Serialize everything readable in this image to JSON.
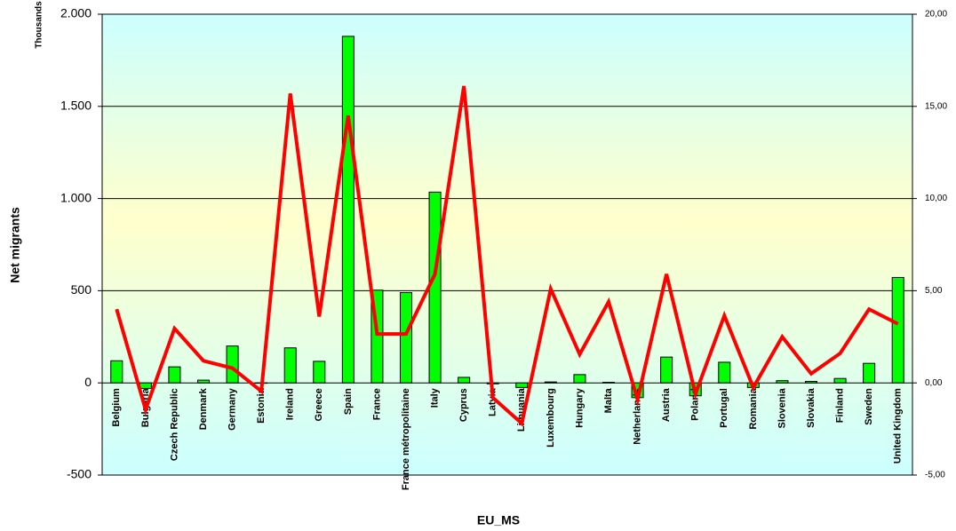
{
  "chart_data": {
    "type": "bar",
    "y_unit_label": "Thousands",
    "ylabel": "Net migrants",
    "xlabel": "EU_MS",
    "categories": [
      "Belgium",
      "Bulgaria",
      "Czech Republic",
      "Denmark",
      "Germany",
      "Estonia",
      "Ireland",
      "Greece",
      "Spain",
      "France",
      "France métropolitaine",
      "Italy",
      "Cyprus",
      "Latvia",
      "Lithuania",
      "Luxembourg",
      "Hungary",
      "Malta",
      "Netherlands",
      "Austria",
      "Poland",
      "Portugal",
      "Romania",
      "Slovenia",
      "Slovakia",
      "Finland",
      "Sweden",
      "United Kingdom"
    ],
    "series": [
      {
        "type": "bar",
        "color": "#00ff00",
        "values": [
          120,
          -30,
          87,
          15,
          200,
          -2,
          190,
          117,
          1880,
          503,
          490,
          1035,
          30,
          -5,
          -25,
          5,
          45,
          3,
          -80,
          140,
          -70,
          112,
          -25,
          12,
          8,
          24,
          106,
          572
        ]
      },
      {
        "type": "line",
        "axis": "y2",
        "color": "#ff0000",
        "values": [
          4.0,
          -1.45,
          2.95,
          1.2,
          0.8,
          -0.45,
          15.7,
          3.6,
          14.5,
          2.65,
          2.65,
          5.9,
          16.1,
          -0.8,
          -2.2,
          5.1,
          1.55,
          4.4,
          -0.9,
          5.9,
          -0.6,
          3.65,
          -0.25,
          2.5,
          0.5,
          1.6,
          4.0,
          3.2
        ]
      }
    ],
    "ylim": [
      -500,
      2000
    ],
    "yticks": [
      -500,
      0,
      500,
      {
        "value": 1000,
        "label": "1.000"
      },
      {
        "value": 1500,
        "label": "1.500"
      },
      {
        "value": 2000,
        "label": "2.000"
      }
    ],
    "y2lim": [
      -5,
      20
    ],
    "y2ticks": [
      {
        "value": -5,
        "label": "-5,00"
      },
      {
        "value": 0,
        "label": "0,00"
      },
      {
        "value": 5,
        "label": "5,00"
      },
      {
        "value": 10,
        "label": "10,00"
      },
      {
        "value": 15,
        "label": "15,00"
      },
      {
        "value": 20,
        "label": "20,00"
      }
    ],
    "grid": true
  }
}
